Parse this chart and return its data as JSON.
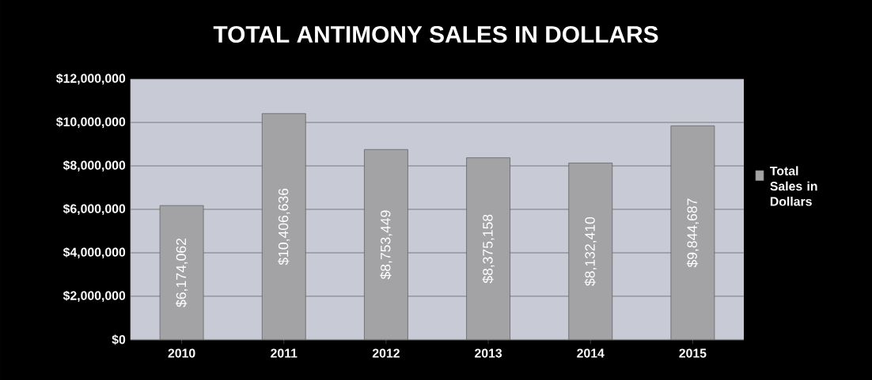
{
  "chart_data": {
    "type": "bar",
    "title": "TOTAL ANTIMONY SALES IN DOLLARS",
    "categories": [
      "2010",
      "2011",
      "2012",
      "2013",
      "2014",
      "2015"
    ],
    "series": [
      {
        "name": "Total Sales in Dollars",
        "color": "#a3a3a6",
        "values": [
          6174062,
          10406636,
          8753449,
          8375158,
          8132410,
          9844687
        ],
        "value_labels": [
          "$6,174,062",
          "$10,406,636",
          "$8,753,449",
          "$8,375,158",
          "$8,132,410",
          "$9,844,687"
        ]
      }
    ],
    "ylim": [
      0,
      12000000
    ],
    "yticks": [
      {
        "value": 0,
        "label": "$0"
      },
      {
        "value": 2000000,
        "label": "$2,000,000"
      },
      {
        "value": 4000000,
        "label": "$4,000,000"
      },
      {
        "value": 6000000,
        "label": "$6,000,000"
      },
      {
        "value": 8000000,
        "label": "$8,000,000"
      },
      {
        "value": 10000000,
        "label": "$10,000,000"
      },
      {
        "value": 12000000,
        "label": "$12,000,000"
      }
    ],
    "grid": "y",
    "legend": "right"
  }
}
